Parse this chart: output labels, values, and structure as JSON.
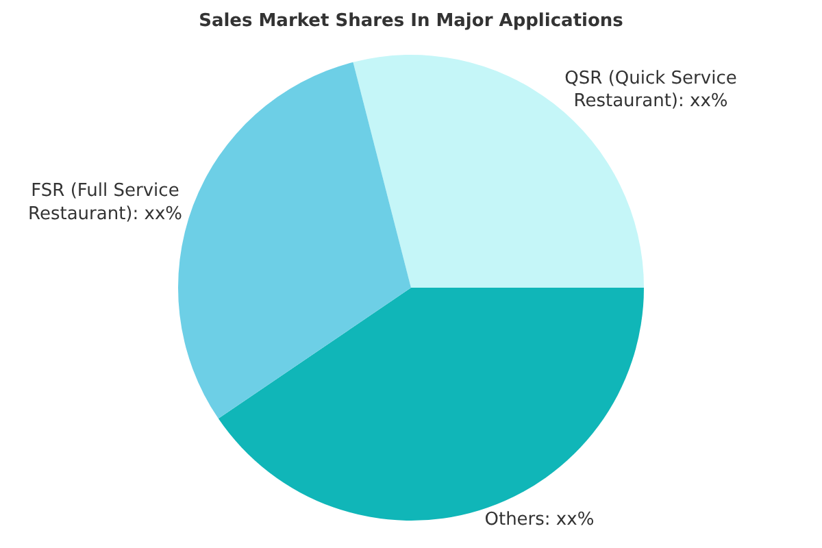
{
  "chart_data": {
    "type": "pie",
    "title": "Sales Market Shares In Major Applications",
    "categories": [
      "Others",
      "QSR (Quick Service Restaurant)",
      "FSR (Full Service Restaurant)"
    ],
    "values": [
      40.5,
      29,
      30.5
    ],
    "value_labels": [
      "xx%",
      "xx%",
      "xx%"
    ],
    "colors": [
      "#10b6b8",
      "#c5f6f8",
      "#6dcfe6"
    ],
    "legend": false
  }
}
